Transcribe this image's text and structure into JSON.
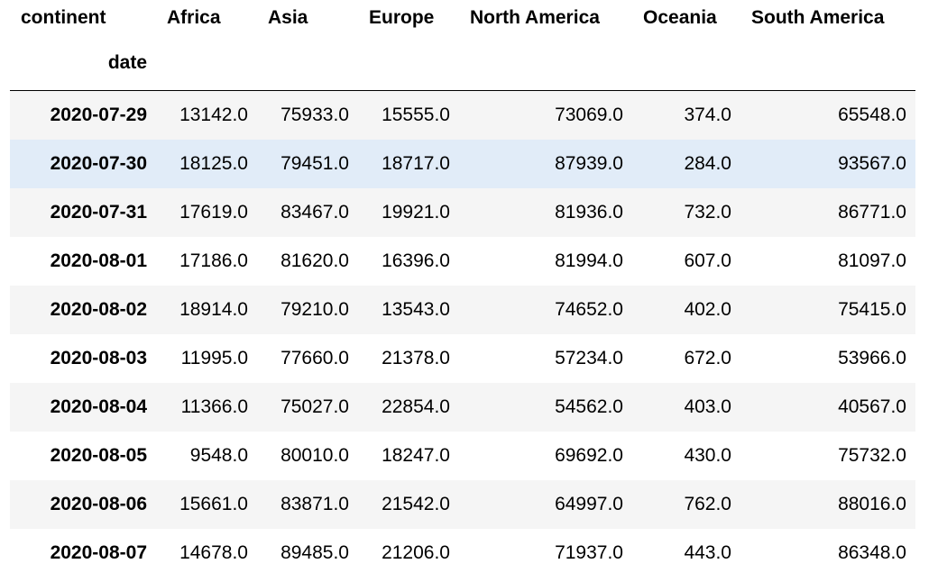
{
  "header": {
    "columns_label": "continent",
    "index_label": "date",
    "columns": [
      "Africa",
      "Asia",
      "Europe",
      "North America",
      "Oceania",
      "South America"
    ]
  },
  "rows": [
    {
      "date": "2020-07-29",
      "values": [
        "13142.0",
        "75933.0",
        "15555.0",
        "73069.0",
        "374.0",
        "65548.0"
      ]
    },
    {
      "date": "2020-07-30",
      "values": [
        "18125.0",
        "79451.0",
        "18717.0",
        "87939.0",
        "284.0",
        "93567.0"
      ]
    },
    {
      "date": "2020-07-31",
      "values": [
        "17619.0",
        "83467.0",
        "19921.0",
        "81936.0",
        "732.0",
        "86771.0"
      ]
    },
    {
      "date": "2020-08-01",
      "values": [
        "17186.0",
        "81620.0",
        "16396.0",
        "81994.0",
        "607.0",
        "81097.0"
      ]
    },
    {
      "date": "2020-08-02",
      "values": [
        "18914.0",
        "79210.0",
        "13543.0",
        "74652.0",
        "402.0",
        "75415.0"
      ]
    },
    {
      "date": "2020-08-03",
      "values": [
        "11995.0",
        "77660.0",
        "21378.0",
        "57234.0",
        "672.0",
        "53966.0"
      ]
    },
    {
      "date": "2020-08-04",
      "values": [
        "11366.0",
        "75027.0",
        "22854.0",
        "54562.0",
        "403.0",
        "40567.0"
      ]
    },
    {
      "date": "2020-08-05",
      "values": [
        "9548.0",
        "80010.0",
        "18247.0",
        "69692.0",
        "430.0",
        "75732.0"
      ]
    },
    {
      "date": "2020-08-06",
      "values": [
        "15661.0",
        "83871.0",
        "21542.0",
        "64997.0",
        "762.0",
        "88016.0"
      ]
    },
    {
      "date": "2020-08-07",
      "values": [
        "14678.0",
        "89485.0",
        "21206.0",
        "71937.0",
        "443.0",
        "86348.0"
      ]
    }
  ],
  "highlighted_row": 1
}
